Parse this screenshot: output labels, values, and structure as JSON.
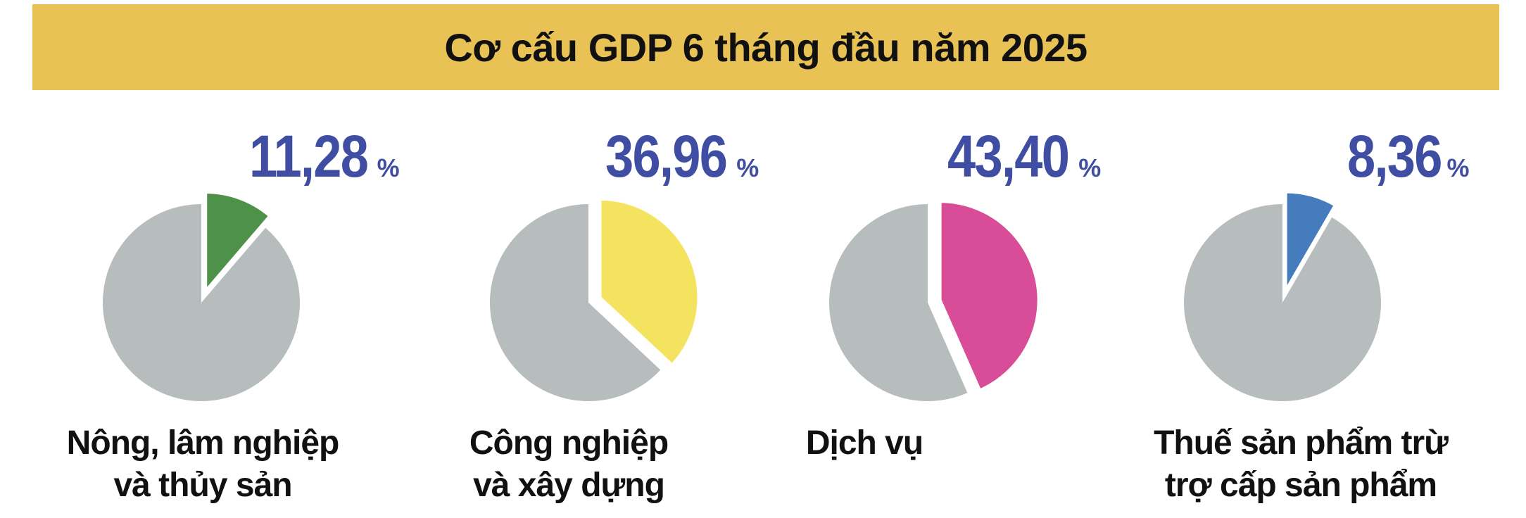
{
  "title": "Cơ cấu GDP 6 tháng đầu năm 2025",
  "colors": {
    "banner": "#e9c255",
    "percent_text": "#3f4da2",
    "remainder": "#b7bcbc"
  },
  "chart_data": {
    "type": "pie",
    "title": "Cơ cấu GDP 6 tháng đầu năm 2025",
    "unit": "%",
    "series": [
      {
        "name": "Nông, lâm nghiệp và thủy sản",
        "label_lines": [
          "Nông, lâm nghiệp",
          "và thủy sản"
        ],
        "value": 11.28,
        "value_text": "11,28",
        "color": "#4e9148"
      },
      {
        "name": "Công nghiệp và xây dựng",
        "label_lines": [
          "Công nghiệp",
          "và xây dựng"
        ],
        "value": 36.96,
        "value_text": "36,96",
        "color": "#f4e35e"
      },
      {
        "name": "Dịch vụ",
        "label_lines": [
          "Dịch vụ"
        ],
        "value": 43.4,
        "value_text": "43,40",
        "color": "#d84c98"
      },
      {
        "name": "Thuế sản phẩm trừ trợ cấp sản phẩm",
        "label_lines": [
          "Thuế sản phẩm trừ",
          "trợ cấp sản phẩm"
        ],
        "value": 8.36,
        "value_text": "8,36",
        "color": "#447cbd"
      }
    ]
  }
}
